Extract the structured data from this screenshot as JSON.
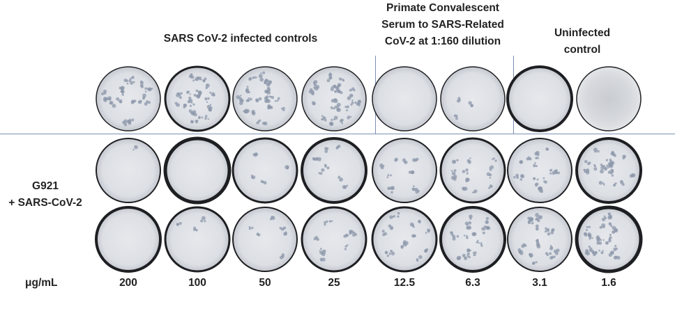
{
  "headers": {
    "infected_controls": "SARS CoV-2 infected controls",
    "convalescent_line1": "Primate Convalescent",
    "convalescent_line2": "Serum to SARS-Related",
    "convalescent_line3": "CoV-2 at 1:160 dilution",
    "uninfected_line1": "Uninfected",
    "uninfected_line2": "control"
  },
  "row_label": {
    "line1": "G921",
    "line2": "+ SARS-CoV-2"
  },
  "axis_label": "μg/mL",
  "concentrations": [
    "200",
    "100",
    "50",
    "25",
    "12.5",
    "6.3",
    "3.1",
    "1.6"
  ]
}
